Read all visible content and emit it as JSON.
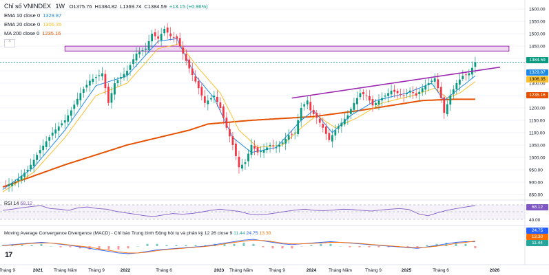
{
  "header": {
    "symbol": "Chỉ số VNINDEX",
    "interval": "1W",
    "open": "O1375.76",
    "high": "H1384.82",
    "low": "L1369.74",
    "close": "C1384.59",
    "change": "+13.15 (+0.96%)"
  },
  "indicators": {
    "ema10": {
      "label": "EMA 10 close 0",
      "value": "1329.87",
      "color": "#1e88e5"
    },
    "ema20": {
      "label": "EMA 20 close 0",
      "value": "1306.35",
      "color": "#fbc02d"
    },
    "ma200": {
      "label": "MA 200 close 0",
      "value": "1235.16",
      "color": "#e65100"
    }
  },
  "collapse_icon": "chevron-up-icon",
  "rsi": {
    "label": "RSI 14",
    "value": "68.12",
    "color": "#7e57c2",
    "levels": [
      70,
      50,
      30
    ]
  },
  "macd": {
    "label": "Moving Average Convergence Divergence (MACD) - Chỉ báo Trung bình Động hội tụ và phân kỳ 12 26 close 9",
    "v1": "11.44",
    "v2": "24.75",
    "v3": "13.30",
    "color_macd": "#2962ff",
    "color_signal": "#ff6d00"
  },
  "price_tags": {
    "last": "1384.59",
    "ema10": "1329.87",
    "ema20": "1306.35",
    "ma200": "1235.16"
  },
  "logo_text": "17",
  "chart_data": {
    "type": "candlestick",
    "y_axis_ticks": [
      1600,
      1550,
      1500,
      1450,
      1400,
      1350,
      1300,
      1250,
      1200,
      1150,
      1100,
      1050,
      1000,
      950,
      900,
      850
    ],
    "ylim": [
      830,
      1620
    ],
    "x_axis_labels": [
      "Tháng 9",
      "2021",
      "Tháng Năm",
      "Tháng 9",
      "2022",
      "Tháng 6",
      "2023",
      "Tháng Năm",
      "Tháng 9",
      "2024",
      "Tháng Năm",
      "Tháng 9",
      "2025",
      "Tháng 6",
      "2026"
    ],
    "close_path": [
      [
        0,
        880
      ],
      [
        4,
        900
      ],
      [
        8,
        950
      ],
      [
        12,
        1030
      ],
      [
        16,
        1100
      ],
      [
        20,
        1150
      ],
      [
        22,
        1190
      ],
      [
        25,
        1260
      ],
      [
        28,
        1310
      ],
      [
        32,
        1340
      ],
      [
        34,
        1220
      ],
      [
        36,
        1300
      ],
      [
        40,
        1350
      ],
      [
        43,
        1420
      ],
      [
        46,
        1440
      ],
      [
        48,
        1500
      ],
      [
        50,
        1480
      ],
      [
        52,
        1520
      ],
      [
        54,
        1490
      ],
      [
        56,
        1480
      ],
      [
        58,
        1420
      ],
      [
        60,
        1360
      ],
      [
        63,
        1280
      ],
      [
        65,
        1220
      ],
      [
        68,
        1250
      ],
      [
        70,
        1200
      ],
      [
        72,
        1120
      ],
      [
        74,
        1050
      ],
      [
        76,
        960
      ],
      [
        78,
        980
      ],
      [
        80,
        1050
      ],
      [
        82,
        1020
      ],
      [
        84,
        1030
      ],
      [
        86,
        1050
      ],
      [
        88,
        1040
      ],
      [
        90,
        1060
      ],
      [
        92,
        1090
      ],
      [
        94,
        1100
      ],
      [
        96,
        1200
      ],
      [
        98,
        1230
      ],
      [
        99,
        1190
      ],
      [
        101,
        1160
      ],
      [
        103,
        1120
      ],
      [
        105,
        1070
      ],
      [
        107,
        1110
      ],
      [
        109,
        1140
      ],
      [
        111,
        1170
      ],
      [
        113,
        1220
      ],
      [
        115,
        1260
      ],
      [
        117,
        1250
      ],
      [
        119,
        1210
      ],
      [
        121,
        1230
      ],
      [
        123,
        1250
      ],
      [
        125,
        1270
      ],
      [
        127,
        1260
      ],
      [
        129,
        1250
      ],
      [
        131,
        1270
      ],
      [
        133,
        1250
      ],
      [
        135,
        1280
      ],
      [
        137,
        1300
      ],
      [
        139,
        1320
      ],
      [
        141,
        1240
      ],
      [
        142,
        1180
      ],
      [
        144,
        1250
      ],
      [
        146,
        1300
      ],
      [
        148,
        1330
      ],
      [
        150,
        1340
      ],
      [
        152,
        1384.59
      ]
    ],
    "ema10_path": [
      [
        0,
        870
      ],
      [
        10,
        960
      ],
      [
        20,
        1110
      ],
      [
        30,
        1290
      ],
      [
        40,
        1330
      ],
      [
        50,
        1470
      ],
      [
        56,
        1480
      ],
      [
        62,
        1330
      ],
      [
        68,
        1240
      ],
      [
        74,
        1080
      ],
      [
        80,
        1020
      ],
      [
        88,
        1040
      ],
      [
        96,
        1150
      ],
      [
        100,
        1190
      ],
      [
        106,
        1100
      ],
      [
        112,
        1170
      ],
      [
        120,
        1230
      ],
      [
        130,
        1260
      ],
      [
        138,
        1300
      ],
      [
        142,
        1230
      ],
      [
        146,
        1270
      ],
      [
        152,
        1329.87
      ]
    ],
    "ema20_path": [
      [
        0,
        860
      ],
      [
        10,
        940
      ],
      [
        20,
        1080
      ],
      [
        30,
        1250
      ],
      [
        40,
        1300
      ],
      [
        50,
        1440
      ],
      [
        57,
        1460
      ],
      [
        63,
        1360
      ],
      [
        70,
        1260
      ],
      [
        76,
        1110
      ],
      [
        82,
        1040
      ],
      [
        90,
        1050
      ],
      [
        97,
        1130
      ],
      [
        101,
        1170
      ],
      [
        107,
        1120
      ],
      [
        114,
        1160
      ],
      [
        122,
        1220
      ],
      [
        132,
        1250
      ],
      [
        139,
        1280
      ],
      [
        143,
        1240
      ],
      [
        147,
        1260
      ],
      [
        152,
        1306.35
      ]
    ],
    "ma200_path": [
      [
        0,
        880
      ],
      [
        20,
        970
      ],
      [
        40,
        1050
      ],
      [
        60,
        1110
      ],
      [
        66,
        1135
      ],
      [
        80,
        1150
      ],
      [
        100,
        1165
      ],
      [
        115,
        1190
      ],
      [
        125,
        1210
      ],
      [
        135,
        1230
      ],
      [
        145,
        1235
      ],
      [
        152,
        1235.16
      ]
    ],
    "resistance_zone": [
      1430,
      1450
    ],
    "trendline": {
      "x0": 93,
      "y0": 1240,
      "x1": 160,
      "y1": 1365
    },
    "rsi_values": [
      55,
      58,
      62,
      65,
      68,
      60,
      58,
      55,
      62,
      64,
      60,
      58,
      52,
      48,
      44,
      40,
      38,
      42,
      46,
      44,
      46,
      50,
      55,
      58,
      55,
      52,
      45,
      42,
      44,
      48,
      52,
      56,
      58,
      55,
      54,
      56,
      58,
      57,
      55,
      53,
      56,
      58,
      60,
      57,
      45,
      40,
      48,
      55,
      60,
      64,
      68.12
    ],
    "macd_values": [
      2,
      4,
      6,
      8,
      10,
      8,
      5,
      2,
      -2,
      -6,
      -10,
      -14,
      -18,
      -20,
      -18,
      -14,
      -10,
      -8,
      -6,
      -4,
      -2,
      0,
      4,
      8,
      12,
      16,
      18,
      14,
      10,
      6,
      4,
      6,
      8,
      10,
      12,
      10,
      8,
      6,
      4,
      2,
      0,
      -2,
      -4,
      -6,
      -2,
      2,
      6,
      10,
      12,
      11.44
    ],
    "signal_values": [
      1,
      3,
      5,
      7,
      8,
      8,
      6,
      3,
      0,
      -3,
      -7,
      -11,
      -15,
      -18,
      -18,
      -16,
      -12,
      -9,
      -7,
      -5,
      -3,
      -1,
      2,
      6,
      10,
      13,
      16,
      15,
      12,
      8,
      6,
      6,
      7,
      8,
      10,
      10,
      9,
      7,
      5,
      3,
      1,
      -1,
      -3,
      -4,
      -3,
      0,
      3,
      7,
      10,
      13.3
    ]
  }
}
